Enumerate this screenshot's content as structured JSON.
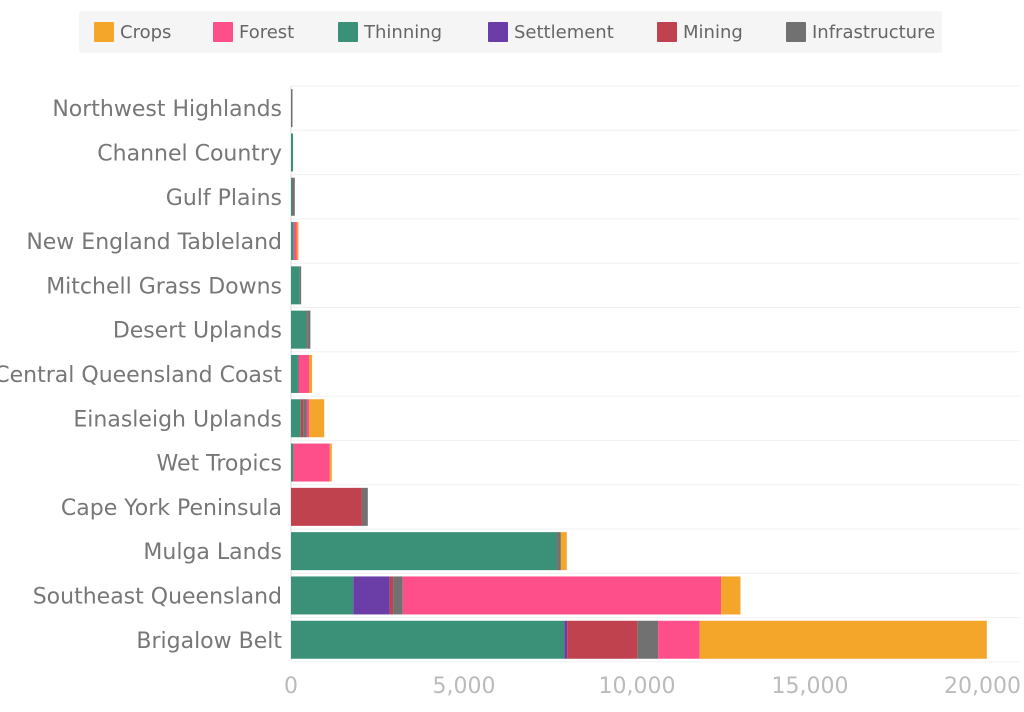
{
  "chart_data": {
    "type": "bar",
    "orientation": "horizontal",
    "stacked": true,
    "title": "",
    "xlabel": "",
    "ylabel": "",
    "xlim": [
      0,
      20000
    ],
    "x_ticks": [
      0,
      5000,
      10000,
      15000,
      20000
    ],
    "x_tick_labels": [
      "0",
      "5,000",
      "10,000",
      "15,000",
      "20,000"
    ],
    "grid": true,
    "legend_position": "top",
    "categories": [
      "Northwest Highlands",
      "Channel Country",
      "Gulf Plains",
      "New England Tableland",
      "Mitchell Grass Downs",
      "Desert Uplands",
      "Central Queensland Coast",
      "Einasleigh Uplands",
      "Wet Tropics",
      "Cape York Peninsula",
      "Mulga Lands",
      "Southeast Queensland",
      "Brigalow Belt"
    ],
    "series": [
      {
        "name": "Thinning",
        "color": "#3a9178",
        "values": [
          0,
          60,
          30,
          80,
          250,
          470,
          200,
          280,
          70,
          0,
          7700,
          1800,
          7900
        ]
      },
      {
        "name": "Settlement",
        "color": "#6a3ea6",
        "values": [
          0,
          0,
          0,
          0,
          0,
          0,
          0,
          0,
          0,
          0,
          0,
          1050,
          80
        ]
      },
      {
        "name": "Mining",
        "color": "#c0424f",
        "values": [
          0,
          0,
          0,
          0,
          0,
          20,
          0,
          70,
          0,
          2050,
          20,
          100,
          2030
        ]
      },
      {
        "name": "Infrastructure",
        "color": "#717171",
        "values": [
          20,
          0,
          80,
          0,
          30,
          70,
          20,
          110,
          0,
          170,
          80,
          280,
          600
        ]
      },
      {
        "name": "Forest",
        "color": "#ff4f8b",
        "values": [
          0,
          0,
          0,
          90,
          0,
          0,
          310,
          70,
          1050,
          0,
          0,
          9200,
          1200
        ]
      },
      {
        "name": "Crops",
        "color": "#f4a62a",
        "values": [
          0,
          0,
          0,
          20,
          0,
          0,
          80,
          430,
          60,
          0,
          170,
          560,
          8300
        ]
      }
    ],
    "legend": [
      "Crops",
      "Forest",
      "Thinning",
      "Settlement",
      "Mining",
      "Infrastructure"
    ],
    "legend_colors": [
      "#f4a62a",
      "#ff4f8b",
      "#3a9178",
      "#6a3ea6",
      "#c0424f",
      "#717171"
    ]
  }
}
